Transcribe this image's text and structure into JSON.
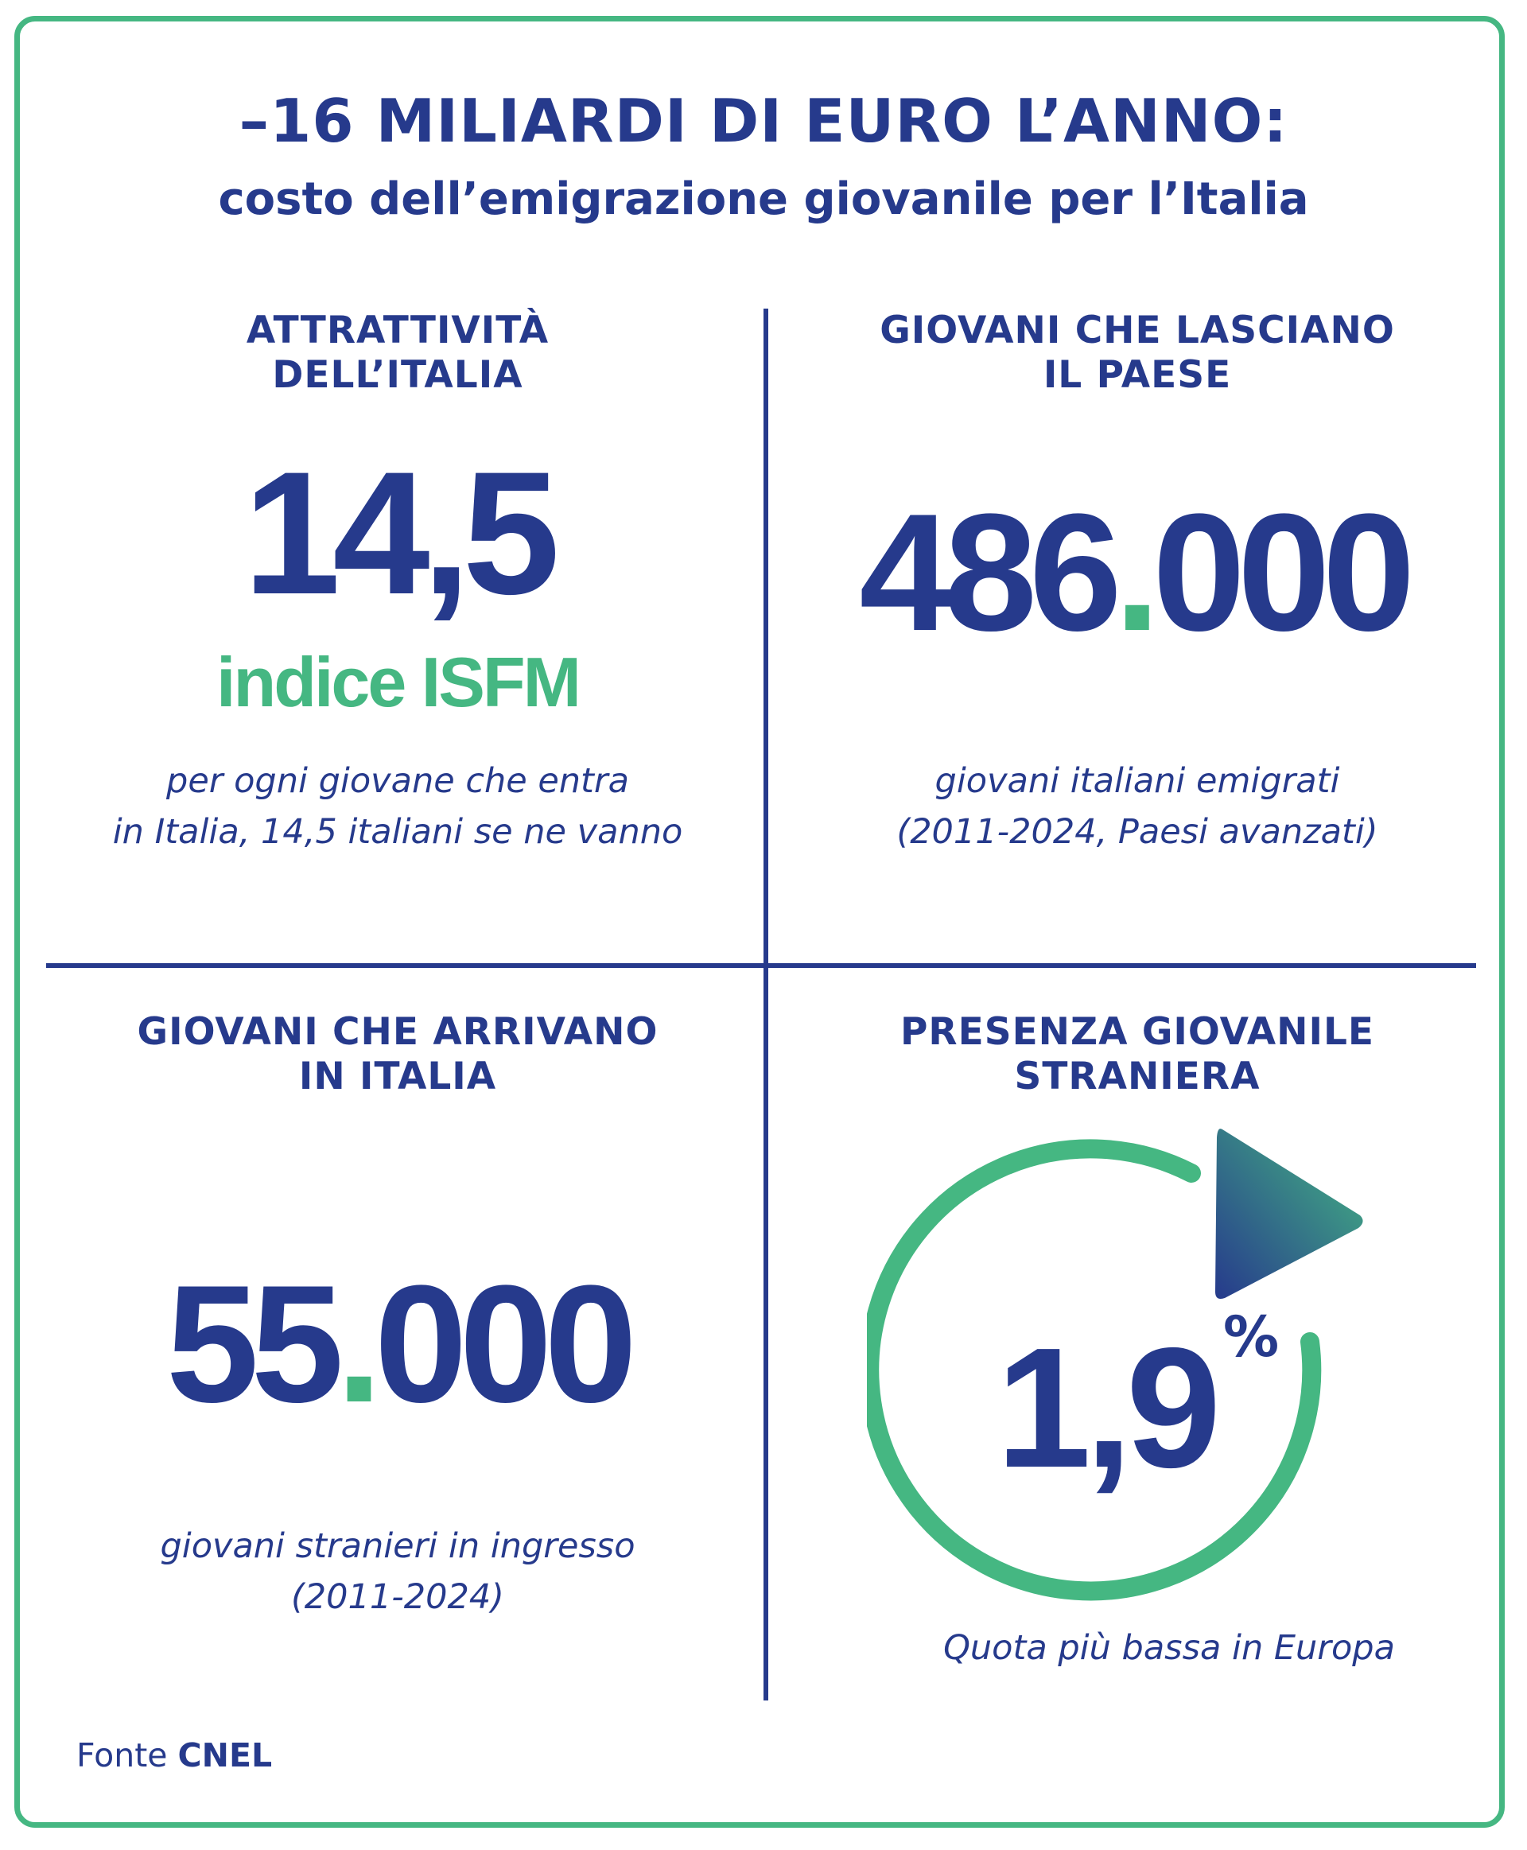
{
  "title": "–16 MILIARDI DI EURO L’ANNO:",
  "subtitle": "costo dell’emigrazione giovanile per l’Italia",
  "quadrants": {
    "top_left": {
      "heading_line1": "ATTRATTIVITÀ",
      "heading_line2": "DELL’ITALIA",
      "value": "14,5",
      "value_label": "indice ISFM",
      "caption_line1": "per ogni giovane che entra",
      "caption_line2": "in Italia, 14,5 italiani se ne vanno"
    },
    "top_right": {
      "heading_line1": "GIOVANI CHE LASCIANO",
      "heading_line2": "IL PAESE",
      "value_part1": "486",
      "value_sep": ".",
      "value_part2": "000",
      "caption_line1": "giovani italiani emigrati",
      "caption_line2": "(2011-2024, Paesi avanzati)"
    },
    "bottom_left": {
      "heading_line1": "GIOVANI CHE ARRIVANO",
      "heading_line2": "IN ITALIA",
      "value_part1": "55",
      "value_sep": ".",
      "value_part2": "000",
      "caption_line1": "giovani stranieri in ingresso",
      "caption_line2": "(2011-2024)"
    },
    "bottom_right": {
      "heading_line1": "PRESENZA GIOVANILE",
      "heading_line2": "STRANIERA",
      "value": "1,9",
      "unit": "%",
      "caption": "Quota più bassa in Europa"
    }
  },
  "source": {
    "label": "Fonte",
    "name": "CNEL"
  },
  "colors": {
    "navy": "#263a8c",
    "green": "#45b782",
    "border": "#45b782"
  },
  "icons": {
    "gauge": "circular-arrow-icon"
  }
}
